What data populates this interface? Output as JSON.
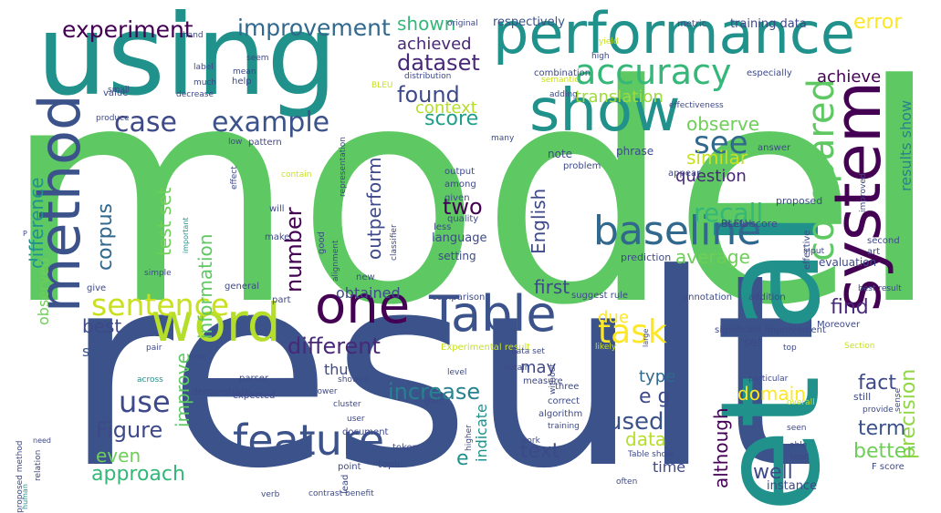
{
  "words": [
    {
      "text": "model",
      "color": "#5ec962"
    },
    {
      "text": "result",
      "color": "#3b528b"
    },
    {
      "text": "using",
      "color": "#21918c"
    },
    {
      "text": "performance",
      "color": "#21918c"
    },
    {
      "text": "system",
      "color": "#440154"
    },
    {
      "text": "et al",
      "color": "#21918c"
    },
    {
      "text": "show",
      "color": "#21918c"
    },
    {
      "text": "method",
      "color": "#3b528b"
    },
    {
      "text": "word",
      "color": "#b5de2b"
    },
    {
      "text": "one",
      "color": "#440154"
    },
    {
      "text": "Table",
      "color": "#3b528b"
    },
    {
      "text": "feature",
      "color": "#3b528b"
    },
    {
      "text": "baseline",
      "color": "#31688e"
    },
    {
      "text": "accuracy",
      "color": "#35b779"
    },
    {
      "text": "task",
      "color": "#fde725"
    },
    {
      "text": "sentence",
      "color": "#c8e020"
    },
    {
      "text": "compared",
      "color": "#5ec962"
    },
    {
      "text": "case",
      "color": "#3e4989"
    },
    {
      "text": "example",
      "color": "#3b528b"
    },
    {
      "text": "see",
      "color": "#31688e"
    },
    {
      "text": "improvement",
      "color": "#31688e"
    },
    {
      "text": "experiment",
      "color": "#440154"
    },
    {
      "text": "dataset",
      "color": "#482878"
    },
    {
      "text": "found",
      "color": "#3e4989"
    },
    {
      "text": "two",
      "color": "#440154"
    },
    {
      "text": "use",
      "color": "#3e4989"
    },
    {
      "text": "recall",
      "color": "#35b779"
    },
    {
      "text": "average",
      "color": "#6ece58"
    },
    {
      "text": "corpus",
      "color": "#31688e"
    },
    {
      "text": "difference",
      "color": "#21918c"
    },
    {
      "text": "approach",
      "color": "#35b779"
    },
    {
      "text": "increase",
      "color": "#26828e"
    },
    {
      "text": "precision",
      "color": "#90d743"
    },
    {
      "text": "Figure",
      "color": "#3e4989"
    },
    {
      "text": "number",
      "color": "#440154"
    },
    {
      "text": "used",
      "color": "#3b528b"
    },
    {
      "text": "test set",
      "color": "#6ece58"
    },
    {
      "text": "data",
      "color": "#b5de2b"
    },
    {
      "text": "better",
      "color": "#6ece58"
    },
    {
      "text": "even",
      "color": "#6ece58"
    },
    {
      "text": "observe",
      "color": "#6ece58"
    },
    {
      "text": "information",
      "color": "#5ec962"
    },
    {
      "text": "outperform",
      "color": "#3e4989"
    },
    {
      "text": "English",
      "color": "#3e4989"
    },
    {
      "text": "improve",
      "color": "#5ec962"
    },
    {
      "text": "error",
      "color": "#fde725"
    },
    {
      "text": "score",
      "color": "#1f9e89"
    },
    {
      "text": "find",
      "color": "#482878"
    },
    {
      "text": "different",
      "color": "#482878"
    },
    {
      "text": "fact",
      "color": "#3e4989"
    },
    {
      "text": "term",
      "color": "#3b528b"
    },
    {
      "text": "similar",
      "color": "#c8e020"
    },
    {
      "text": "shown",
      "color": "#35b779"
    },
    {
      "text": "achieved",
      "color": "#482878"
    },
    {
      "text": "translation",
      "color": "#a0da39"
    },
    {
      "text": "context",
      "color": "#b5de2b"
    },
    {
      "text": "achieve",
      "color": "#440154"
    },
    {
      "text": "results show",
      "color": "#26828e"
    },
    {
      "text": "domain",
      "color": "#fde725"
    },
    {
      "text": "question",
      "color": "#482878"
    },
    {
      "text": "respectively",
      "color": "#3b528b"
    },
    {
      "text": "training data",
      "color": "#3e4989"
    },
    {
      "text": "due",
      "color": "#fde725"
    },
    {
      "text": "may",
      "color": "#3e4989"
    },
    {
      "text": "best",
      "color": "#3e4989"
    },
    {
      "text": "type",
      "color": "#31688e"
    },
    {
      "text": "e g",
      "color": "#3e4989"
    },
    {
      "text": "although",
      "color": "#440154"
    },
    {
      "text": "first",
      "color": "#3e4989"
    },
    {
      "text": "text",
      "color": "#3e4989"
    },
    {
      "text": "well",
      "color": "#3e4989"
    },
    {
      "text": "obtained",
      "color": "#3e4989"
    },
    {
      "text": "state",
      "color": "#3b528b"
    },
    {
      "text": "thu",
      "color": "#3e4989"
    },
    {
      "text": "observed",
      "color": "#6ece58"
    },
    {
      "text": "indicate",
      "color": "#21918c"
    },
    {
      "text": "e",
      "color": "#21918c"
    },
    {
      "text": "time",
      "color": "#3e4989"
    },
    {
      "text": "instance",
      "color": "#3e4989"
    },
    {
      "text": "language",
      "color": "#3e4989"
    },
    {
      "text": "set",
      "color": "#3e4989"
    },
    {
      "text": "note",
      "color": "#3e4989"
    },
    {
      "text": "BLEU score",
      "color": "#3e4989"
    },
    {
      "text": "evaluation",
      "color": "#3e4989"
    },
    {
      "text": "phrase",
      "color": "#3e4989"
    },
    {
      "text": "prediction",
      "color": "#3e4989"
    },
    {
      "text": "output",
      "color": "#3e4989"
    },
    {
      "text": "among",
      "color": "#3e4989"
    },
    {
      "text": "given",
      "color": "#3e4989"
    },
    {
      "text": "quality",
      "color": "#3e4989"
    },
    {
      "text": "less",
      "color": "#3e4989"
    },
    {
      "text": "setting",
      "color": "#3e4989"
    },
    {
      "text": "comparison",
      "color": "#3e4989"
    },
    {
      "text": "suggest rule",
      "color": "#3e4989"
    },
    {
      "text": "annotation",
      "color": "#3e4989"
    },
    {
      "text": "addition",
      "color": "#3e4989"
    },
    {
      "text": "Experimental result",
      "color": "#c8e020"
    },
    {
      "text": "data set",
      "color": "#3e4989"
    },
    {
      "text": "likely",
      "color": "#c8e020"
    },
    {
      "text": "level",
      "color": "#3e4989"
    },
    {
      "text": "measure",
      "color": "#3e4989"
    },
    {
      "text": "obtain",
      "color": "#3e4989"
    },
    {
      "text": "three",
      "color": "#3e4989"
    },
    {
      "text": "correct",
      "color": "#3e4989"
    },
    {
      "text": "algorithm",
      "color": "#3e4989"
    },
    {
      "text": "training",
      "color": "#3e4989"
    },
    {
      "text": "work",
      "color": "#3e4989"
    },
    {
      "text": "Table show",
      "color": "#3e4989"
    },
    {
      "text": "often",
      "color": "#3e4989"
    },
    {
      "text": "topic",
      "color": "#3e4989"
    },
    {
      "text": "token",
      "color": "#3e4989"
    },
    {
      "text": "benefit",
      "color": "#3e4989"
    },
    {
      "text": "contrast",
      "color": "#3e4989"
    },
    {
      "text": "verb",
      "color": "#3e4989"
    },
    {
      "text": "point",
      "color": "#3e4989"
    },
    {
      "text": "lead",
      "color": "#3e4989"
    },
    {
      "text": "document",
      "color": "#3e4989"
    },
    {
      "text": "user",
      "color": "#3e4989"
    },
    {
      "text": "cluster",
      "color": "#3e4989"
    },
    {
      "text": "lower",
      "color": "#3e4989"
    },
    {
      "text": "showed",
      "color": "#3e4989"
    },
    {
      "text": "higher",
      "color": "#3e4989"
    },
    {
      "text": "gain",
      "color": "#3e4989"
    },
    {
      "text": "expected",
      "color": "#3e4989"
    },
    {
      "text": "demonstrate",
      "color": "#3e4989"
    },
    {
      "text": "across",
      "color": "#21918c"
    },
    {
      "text": "parser",
      "color": "#3e4989"
    },
    {
      "text": "size",
      "color": "#3e4989"
    },
    {
      "text": "pair",
      "color": "#3e4989"
    },
    {
      "text": "give",
      "color": "#3e4989"
    },
    {
      "text": "simple",
      "color": "#3e4989"
    },
    {
      "text": "general",
      "color": "#3e4989"
    },
    {
      "text": "new",
      "color": "#3e4989"
    },
    {
      "text": "part",
      "color": "#3e4989"
    },
    {
      "text": "make",
      "color": "#3e4989"
    },
    {
      "text": "will",
      "color": "#3e4989"
    },
    {
      "text": "good",
      "color": "#3e4989"
    },
    {
      "text": "alignment",
      "color": "#3e4989"
    },
    {
      "text": "classifier",
      "color": "#3e4989"
    },
    {
      "text": "contain",
      "color": "#c8e020"
    },
    {
      "text": "proposed",
      "color": "#3e4989"
    },
    {
      "text": "effective",
      "color": "#3e4989"
    },
    {
      "text": "useful",
      "color": "#3e4989"
    },
    {
      "text": "input",
      "color": "#3e4989"
    },
    {
      "text": "second",
      "color": "#3e4989"
    },
    {
      "text": "art",
      "color": "#3e4989"
    },
    {
      "text": "best result",
      "color": "#3e4989"
    },
    {
      "text": "significant improvement",
      "color": "#3e4989"
    },
    {
      "text": "Moreover",
      "color": "#3e4989"
    },
    {
      "text": "top",
      "color": "#3e4989"
    },
    {
      "text": "Section",
      "color": "#c8e020"
    },
    {
      "text": "particular",
      "color": "#3e4989"
    },
    {
      "text": "still",
      "color": "#3e4989"
    },
    {
      "text": "sense",
      "color": "#3e4989"
    },
    {
      "text": "provide",
      "color": "#3e4989"
    },
    {
      "text": "overall",
      "color": "#c8e020"
    },
    {
      "text": "seen",
      "color": "#3e4989"
    },
    {
      "text": "able",
      "color": "#3e4989"
    },
    {
      "text": "tend",
      "color": "#3e4989"
    },
    {
      "text": "F score",
      "color": "#3e4989"
    },
    {
      "text": "problem",
      "color": "#3e4989"
    },
    {
      "text": "appear",
      "color": "#3e4989"
    },
    {
      "text": "answer",
      "color": "#3e4989"
    },
    {
      "text": "improved",
      "color": "#3e4989"
    },
    {
      "text": "many",
      "color": "#3e4989"
    },
    {
      "text": "pattern",
      "color": "#3e4989"
    },
    {
      "text": "effect",
      "color": "#3e4989"
    },
    {
      "text": "low",
      "color": "#3e4989"
    },
    {
      "text": "important",
      "color": "#21918c"
    },
    {
      "text": "representation",
      "color": "#3e4989"
    },
    {
      "text": "help",
      "color": "#3e4989"
    },
    {
      "text": "decrease",
      "color": "#3e4989"
    },
    {
      "text": "much",
      "color": "#3e4989"
    },
    {
      "text": "value",
      "color": "#3e4989"
    },
    {
      "text": "produce",
      "color": "#3e4989"
    },
    {
      "text": "small",
      "color": "#3e4989"
    },
    {
      "text": "mean",
      "color": "#3e4989"
    },
    {
      "text": "label",
      "color": "#3e4989"
    },
    {
      "text": "seem",
      "color": "#3e4989"
    },
    {
      "text": "hand",
      "color": "#3e4989"
    },
    {
      "text": "original",
      "color": "#3e4989"
    },
    {
      "text": "yield",
      "color": "#c8e020"
    },
    {
      "text": "high",
      "color": "#3e4989"
    },
    {
      "text": "metric",
      "color": "#3e4989"
    },
    {
      "text": "BLEU",
      "color": "#c8e020"
    },
    {
      "text": "distribution",
      "color": "#3e4989"
    },
    {
      "text": "combination",
      "color": "#3e4989"
    },
    {
      "text": "semantic",
      "color": "#c8e020"
    },
    {
      "text": "adding",
      "color": "#3e4989"
    },
    {
      "text": "effectiveness",
      "color": "#3e4989"
    },
    {
      "text": "especially",
      "color": "#3e4989"
    },
    {
      "text": "P",
      "color": "#3e4989"
    },
    {
      "text": "proposed method",
      "color": "#3e4989"
    },
    {
      "text": "need",
      "color": "#3e4989"
    },
    {
      "text": "relation",
      "color": "#3e4989"
    },
    {
      "text": "human",
      "color": "#21918c"
    },
    {
      "text": "without",
      "color": "#3e4989"
    },
    {
      "text": "large",
      "color": "#3e4989"
    }
  ]
}
